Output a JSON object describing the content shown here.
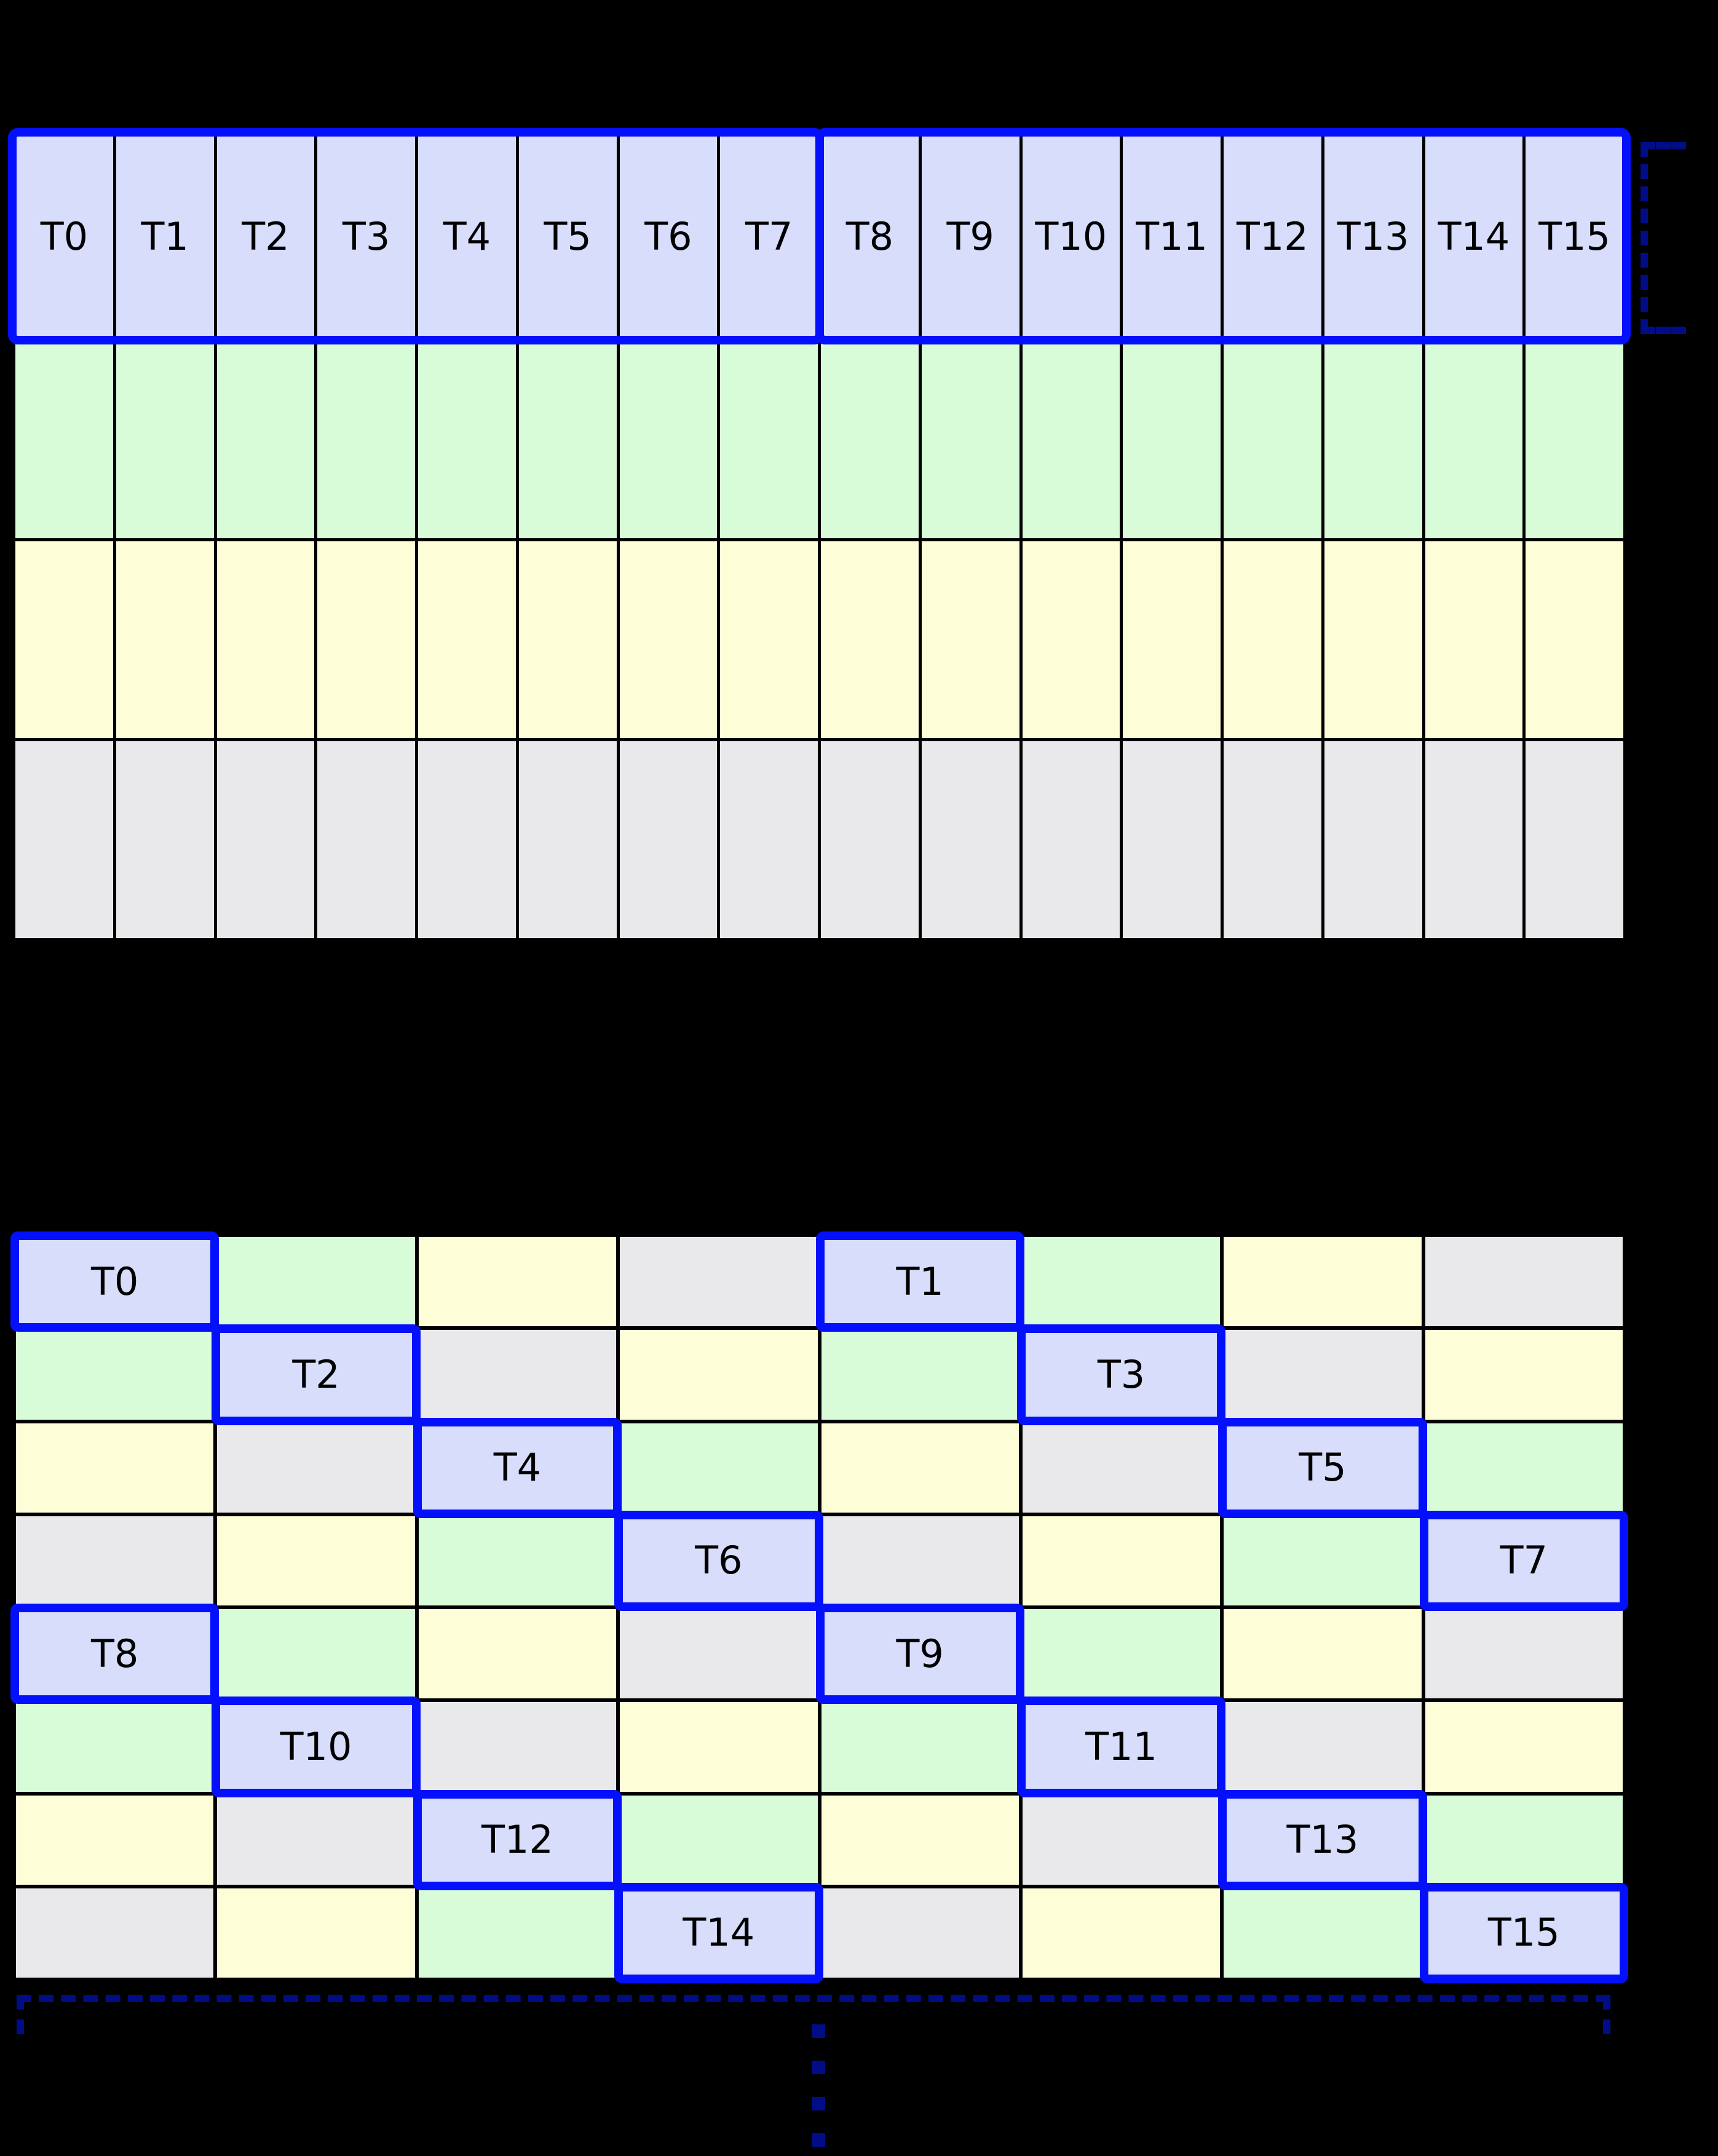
{
  "palette": {
    "background": "#000000",
    "cell_thread": "#d7ddfa",
    "cell_green": "#d8fcd8",
    "cell_yellow": "#fdfdd8",
    "cell_gray": "#e9e9eb",
    "grid_line": "#000000",
    "highlight_border": "#0410fb",
    "bracket": "#000d86",
    "label_text": "#000000"
  },
  "top_grid": {
    "columns": 16,
    "rows": 4,
    "thread_labels": [
      "T0",
      "T1",
      "T2",
      "T3",
      "T4",
      "T5",
      "T6",
      "T7",
      "T8",
      "T9",
      "T10",
      "T11",
      "T12",
      "T13",
      "T14",
      "T15"
    ],
    "row_fills": [
      "cell_thread",
      "cell_green",
      "cell_yellow",
      "cell_gray"
    ],
    "thread_groups": [
      [
        0,
        7
      ],
      [
        8,
        15
      ]
    ]
  },
  "bottom_grid": {
    "columns": 8,
    "rows": 8,
    "color_order": [
      "cell_thread",
      "cell_green",
      "cell_yellow",
      "cell_gray"
    ],
    "fill_rule": "(row mod 4) xor (col mod 4)",
    "highlights": [
      {
        "row": 0,
        "col": 0,
        "label": "T0"
      },
      {
        "row": 0,
        "col": 4,
        "label": "T1"
      },
      {
        "row": 1,
        "col": 1,
        "label": "T2"
      },
      {
        "row": 1,
        "col": 5,
        "label": "T3"
      },
      {
        "row": 2,
        "col": 2,
        "label": "T4"
      },
      {
        "row": 2,
        "col": 6,
        "label": "T5"
      },
      {
        "row": 3,
        "col": 3,
        "label": "T6"
      },
      {
        "row": 3,
        "col": 7,
        "label": "T7"
      },
      {
        "row": 4,
        "col": 0,
        "label": "T8"
      },
      {
        "row": 4,
        "col": 4,
        "label": "T9"
      },
      {
        "row": 5,
        "col": 1,
        "label": "T10"
      },
      {
        "row": 5,
        "col": 5,
        "label": "T11"
      },
      {
        "row": 6,
        "col": 2,
        "label": "T12"
      },
      {
        "row": 6,
        "col": 6,
        "label": "T13"
      },
      {
        "row": 7,
        "col": 3,
        "label": "T14"
      },
      {
        "row": 7,
        "col": 7,
        "label": "T15"
      }
    ]
  },
  "annotations": {
    "right_bracket": {
      "style": "dashed",
      "opens": "right"
    },
    "bottom_bracket": {
      "style": "dashed",
      "opens": "down"
    },
    "ellipsis_dots": 4
  }
}
